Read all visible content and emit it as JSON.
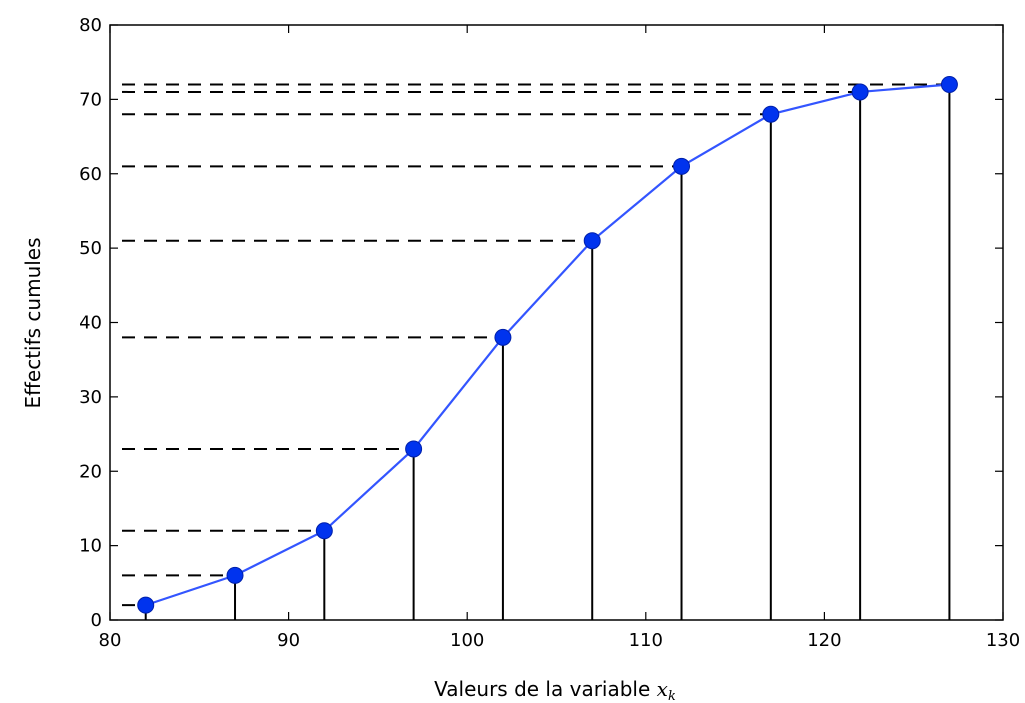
{
  "chart_data": {
    "type": "line",
    "xlabel": "Valeurs de la variable",
    "xlabel_symbol": "x",
    "xlabel_subscript": "k",
    "ylabel": "Effectifs cumules",
    "xlim": [
      80,
      130
    ],
    "ylim": [
      0,
      80
    ],
    "xticks": [
      80,
      90,
      100,
      110,
      120,
      130
    ],
    "yticks": [
      0,
      10,
      20,
      30,
      40,
      50,
      60,
      70,
      80
    ],
    "grid": false,
    "colors": {
      "series": "#3355ff",
      "marker": "#0033ee",
      "guides": "#000000"
    },
    "series": [
      {
        "x": [
          82,
          87,
          92,
          97,
          102,
          107,
          112,
          117,
          122,
          127
        ],
        "y": [
          2,
          6,
          12,
          23,
          38,
          51,
          61,
          68,
          71,
          72
        ]
      }
    ]
  }
}
